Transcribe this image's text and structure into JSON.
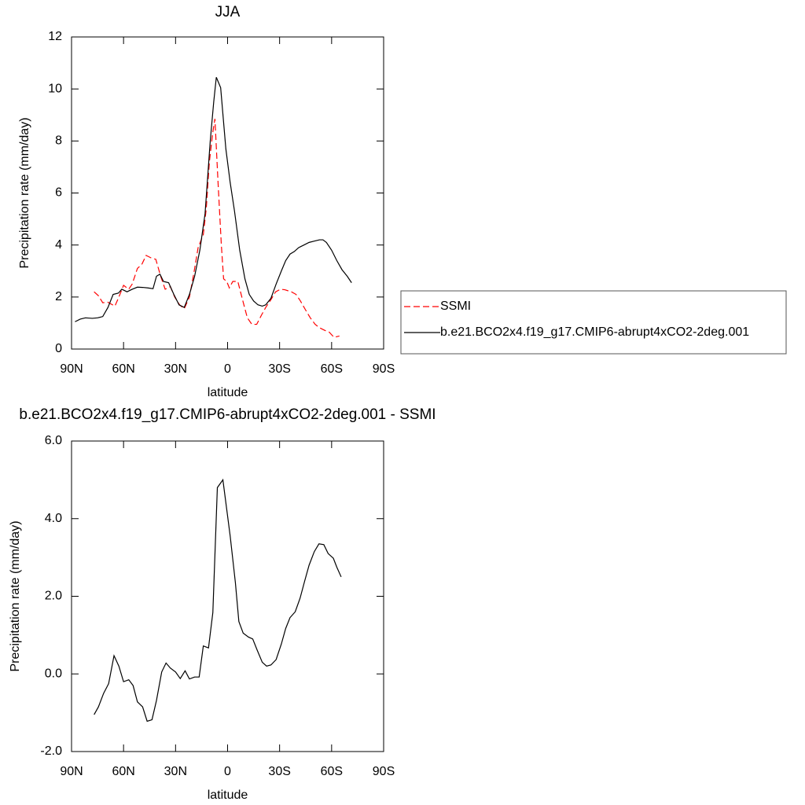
{
  "chart_data": [
    {
      "type": "line",
      "title": "JJA",
      "xlabel": "latitude",
      "ylabel": "Precipitation rate (mm/day)",
      "xlim": [
        90,
        -90
      ],
      "xticks": [
        {
          "value": 90,
          "label": "90N"
        },
        {
          "value": 60,
          "label": "60N"
        },
        {
          "value": 30,
          "label": "30N"
        },
        0,
        {
          "value": -30,
          "label": "30S"
        },
        {
          "value": -60,
          "label": "60S"
        },
        {
          "value": -90,
          "label": "90S"
        }
      ],
      "ylim": [
        0,
        12
      ],
      "yticks": [
        0,
        2,
        4,
        6,
        8,
        10,
        12
      ],
      "legend": "right",
      "series": [
        {
          "name": "SSMI",
          "color": "#ff0000",
          "style": "dashed",
          "x": [
            77,
            74.5,
            72,
            69,
            65,
            62.7,
            60,
            57,
            55,
            52,
            49.5,
            47,
            44,
            41.4,
            38.6,
            36,
            33,
            30.5,
            27.7,
            25,
            22,
            19.5,
            17,
            14,
            12.3,
            10.5,
            8.6,
            7.3,
            5.5,
            3.6,
            2.3,
            0.5,
            -1,
            -3,
            -5.9,
            -8.6,
            -11.4,
            -14,
            -16.8,
            -19.5,
            -22,
            -25,
            -27.7,
            -30.5,
            -33,
            -36.8,
            -39.5,
            -42,
            -45,
            -47.7,
            -50.5,
            -53,
            -56,
            -58.6,
            -61.4,
            -64.5
          ],
          "values": [
            2.2,
            2.05,
            1.78,
            1.8,
            1.65,
            2.0,
            2.45,
            2.3,
            2.5,
            3.1,
            3.25,
            3.6,
            3.5,
            3.45,
            2.8,
            2.3,
            2.4,
            2.0,
            1.7,
            1.55,
            2.0,
            2.9,
            3.9,
            4.4,
            5.4,
            7.2,
            8.3,
            8.85,
            6.4,
            4.0,
            2.7,
            2.6,
            2.35,
            2.6,
            2.6,
            1.9,
            1.2,
            0.95,
            0.95,
            1.3,
            1.6,
            1.9,
            2.2,
            2.3,
            2.28,
            2.2,
            2.1,
            1.85,
            1.5,
            1.2,
            0.95,
            0.82,
            0.72,
            0.65,
            0.45,
            0.5
          ]
        },
        {
          "name": "b.e21.BCO2x4.f19_g17.CMIP6-abrupt4xCO2-2deg.001",
          "color": "#000000",
          "style": "solid",
          "x": [
            88,
            85,
            82,
            78,
            75,
            72,
            69,
            66,
            63,
            61,
            58,
            55,
            52,
            49,
            46,
            43,
            41,
            39,
            37,
            34,
            31,
            28,
            25,
            22,
            19,
            16,
            13,
            10,
            8,
            6.5,
            4,
            1,
            -1.5,
            -4,
            -7,
            -10,
            -12.5,
            -15,
            -17.5,
            -20,
            -22,
            -25,
            -28,
            -31,
            -33.5,
            -36,
            -38.5,
            -41,
            -44,
            -47,
            -50,
            -53,
            -55,
            -57,
            -60,
            -63,
            -66,
            -69,
            -71.5
          ],
          "values": [
            1.05,
            1.15,
            1.2,
            1.18,
            1.2,
            1.25,
            1.6,
            2.1,
            2.15,
            2.3,
            2.2,
            2.3,
            2.38,
            2.37,
            2.35,
            2.32,
            2.8,
            2.88,
            2.6,
            2.55,
            2.1,
            1.7,
            1.6,
            2.1,
            2.8,
            3.8,
            5.2,
            8.0,
            9.5,
            10.45,
            10.05,
            7.7,
            6.4,
            5.3,
            3.8,
            2.7,
            2.1,
            1.85,
            1.7,
            1.65,
            1.7,
            1.95,
            2.5,
            3.0,
            3.4,
            3.65,
            3.75,
            3.9,
            4.0,
            4.1,
            4.15,
            4.2,
            4.2,
            4.1,
            3.8,
            3.4,
            3.05,
            2.8,
            2.55
          ]
        }
      ]
    },
    {
      "type": "line",
      "title": "b.e21.BCO2x4.f19_g17.CMIP6-abrupt4xCO2-2deg.001 - SSMI",
      "xlabel": "latitude",
      "ylabel": "Precipitation rate (mm/day)",
      "xlim": [
        90,
        -90
      ],
      "xticks": [
        {
          "value": 90,
          "label": "90N"
        },
        {
          "value": 60,
          "label": "60N"
        },
        {
          "value": 30,
          "label": "30N"
        },
        0,
        {
          "value": -30,
          "label": "30S"
        },
        {
          "value": -60,
          "label": "60S"
        },
        {
          "value": -90,
          "label": "90S"
        }
      ],
      "ylim": [
        -2,
        6
      ],
      "yticks": [
        {
          "value": -2,
          "label": "-2.0"
        },
        {
          "value": 0,
          "label": "0.0"
        },
        {
          "value": 2,
          "label": "2.0"
        },
        {
          "value": 4,
          "label": "4.0"
        },
        {
          "value": 6,
          "label": "6.0"
        }
      ],
      "color": "#000000",
      "x": [
        77,
        74.5,
        71.5,
        68.6,
        65.5,
        62.7,
        60,
        57,
        54.5,
        52,
        49,
        46.4,
        43.6,
        41,
        38,
        35.5,
        33,
        30,
        27.3,
        24.5,
        22,
        19,
        16.4,
        14,
        11,
        8.5,
        5.9,
        2.7,
        -1.5,
        -4.5,
        -6.5,
        -9,
        -12,
        -14.5,
        -17,
        -20,
        -22.5,
        -25,
        -28,
        -31,
        -33.5,
        -36,
        -39,
        -41.8,
        -44.5,
        -47,
        -50,
        -52.7,
        -55.5,
        -58,
        -61,
        -63,
        -65.5
      ],
      "values": [
        -1.05,
        -0.85,
        -0.5,
        -0.25,
        0.47,
        0.2,
        -0.2,
        -0.15,
        -0.3,
        -0.72,
        -0.85,
        -1.22,
        -1.18,
        -0.68,
        0.05,
        0.28,
        0.15,
        0.05,
        -0.12,
        0.08,
        -0.13,
        -0.08,
        -0.08,
        0.72,
        0.67,
        1.58,
        4.8,
        5.0,
        3.55,
        2.35,
        1.35,
        1.05,
        0.95,
        0.9,
        0.62,
        0.3,
        0.2,
        0.23,
        0.37,
        0.77,
        1.17,
        1.45,
        1.6,
        1.95,
        2.4,
        2.8,
        3.15,
        3.35,
        3.33,
        3.1,
        2.98,
        2.75,
        2.5
      ]
    }
  ]
}
